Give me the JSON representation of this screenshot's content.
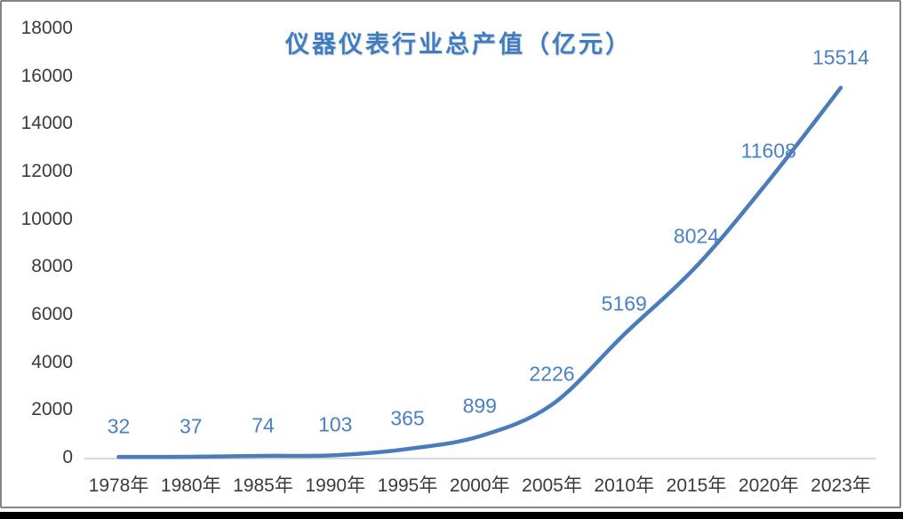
{
  "frame": {
    "background": "#ffffff",
    "border_color": "#848484",
    "bottom_bar_color": "#000000"
  },
  "chart_data": {
    "type": "line",
    "title": "仪器仪表行业总产值（亿元）",
    "categories": [
      "1978年",
      "1980年",
      "1985年",
      "1990年",
      "1995年",
      "2000年",
      "2005年",
      "2010年",
      "2015年",
      "2020年",
      "2023年"
    ],
    "values": [
      32,
      37,
      74,
      103,
      365,
      899,
      2226,
      5169,
      8024,
      11608,
      15514
    ],
    "data_labels": [
      "32",
      "37",
      "74",
      "103",
      "365",
      "899",
      "2226",
      "5169",
      "8024",
      "11608",
      "15514"
    ],
    "yticks": [
      0,
      2000,
      4000,
      6000,
      8000,
      10000,
      12000,
      14000,
      16000,
      18000
    ],
    "ylim": [
      0,
      18000
    ],
    "xlabel": "",
    "ylabel": "",
    "grid": false,
    "smooth_line": true,
    "legend": "none",
    "line_color": "#4a7cba",
    "data_label_color": "#4a80c4",
    "title_color": "#3e7dc3",
    "axis_text_color": "#3b3b3b",
    "axis_line_color": "#d9d9d9"
  }
}
